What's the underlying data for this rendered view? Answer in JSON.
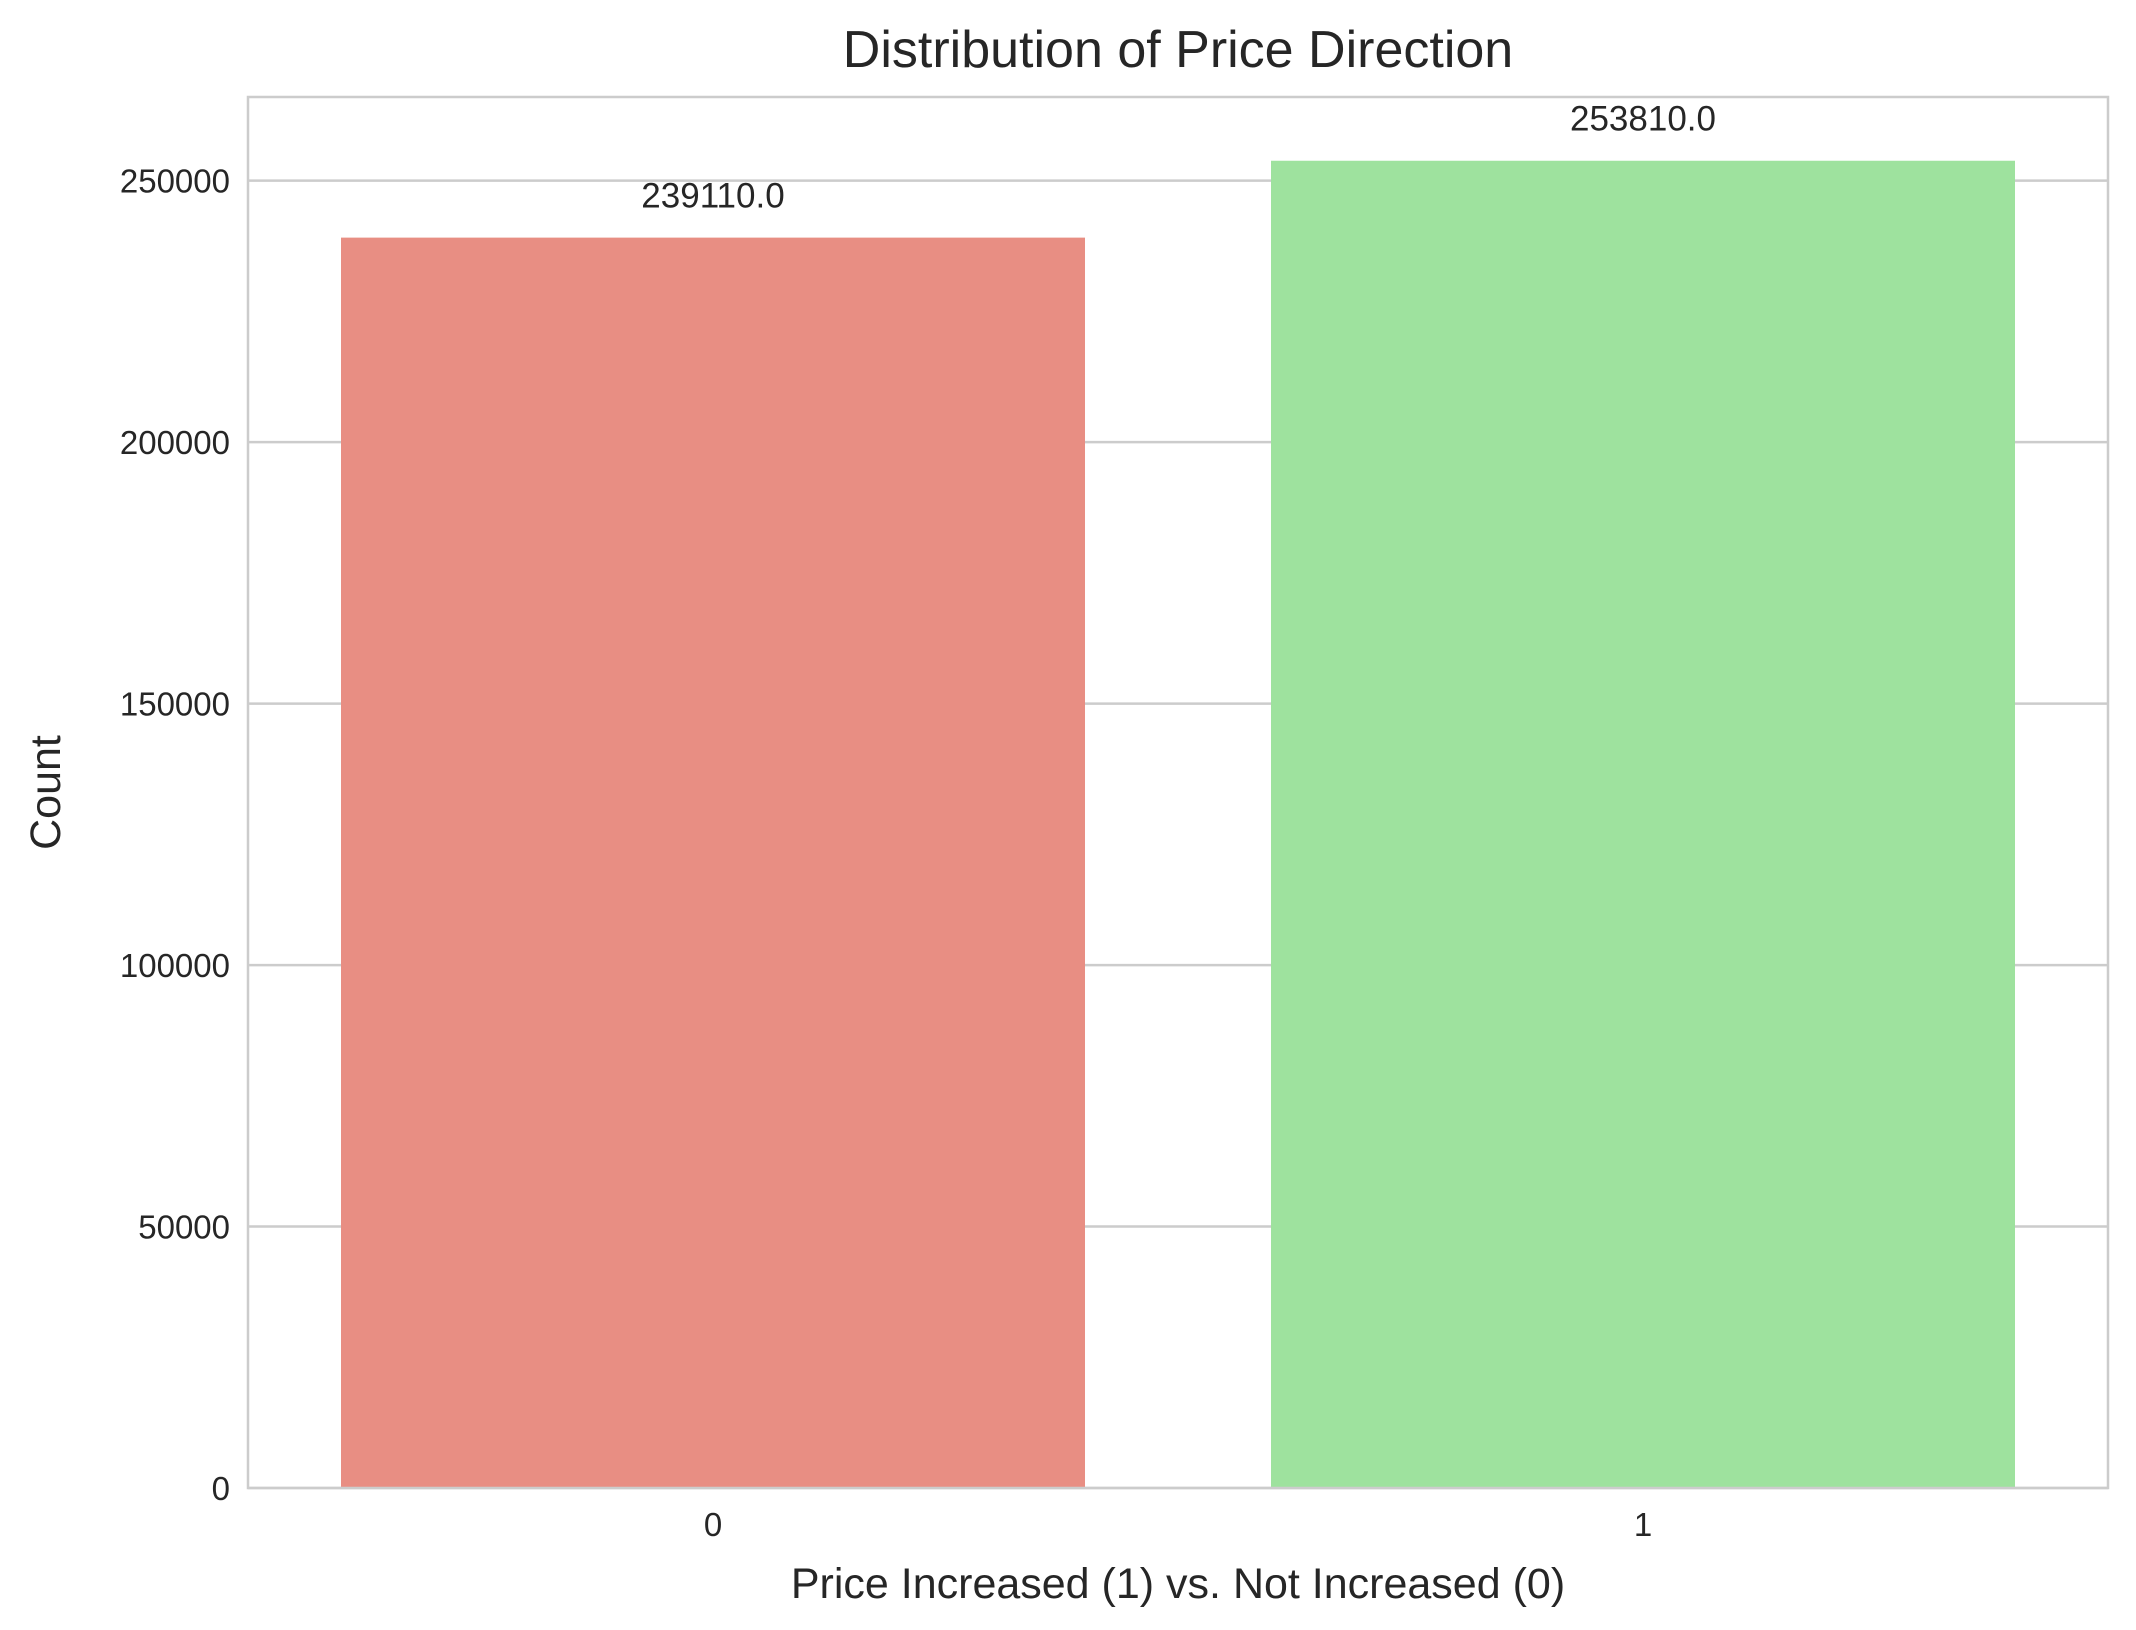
{
  "chart_data": {
    "type": "bar",
    "title": "Distribution of Price Direction",
    "xlabel": "Price Increased (1) vs. Not Increased (0)",
    "ylabel": "Count",
    "categories": [
      "0",
      "1"
    ],
    "values": [
      239110,
      253810
    ],
    "value_labels": [
      "239110.0",
      "253810.0"
    ],
    "colors": [
      "#e88e83",
      "#9ee29e"
    ],
    "ylim": [
      0,
      266000
    ],
    "yticks": [
      0,
      50000,
      100000,
      150000,
      200000,
      250000
    ],
    "ytick_labels": [
      "0",
      "50000",
      "100000",
      "150000",
      "200000",
      "250000"
    ],
    "grid": "horizontal",
    "legend": "none"
  }
}
